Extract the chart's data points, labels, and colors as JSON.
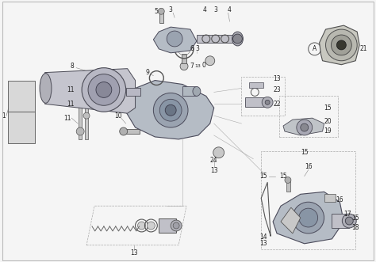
{
  "background_color": "#f5f5f5",
  "figsize": [
    4.74,
    3.31
  ],
  "dpi": 100,
  "line_color": "#666666",
  "text_color": "#222222",
  "font_size": 5.5,
  "img_background": "#f5f5f5",
  "border_color": "#bbbbbb"
}
